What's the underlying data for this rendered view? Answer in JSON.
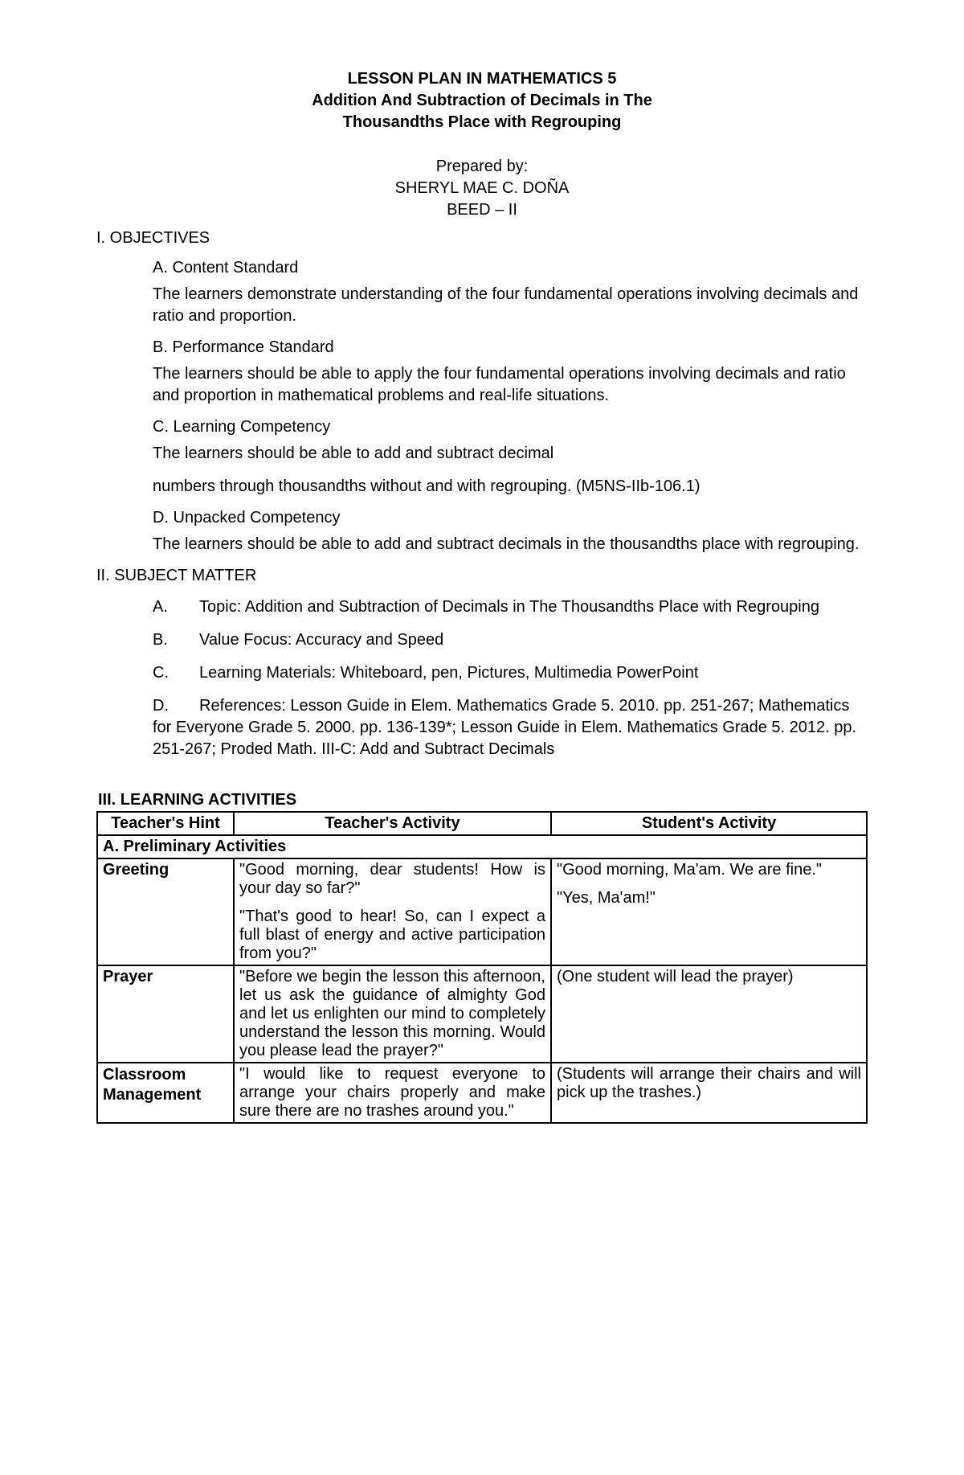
{
  "title": {
    "line1": "LESSON PLAN IN MATHEMATICS 5",
    "line2": "Addition And Subtraction of Decimals in The",
    "line3": "Thousandths Place with Regrouping"
  },
  "prepared": {
    "by_label": "Prepared by:",
    "name": "SHERYL MAE C. DOÑA",
    "course": "BEED – II"
  },
  "objectives": {
    "heading": "I. OBJECTIVES",
    "a_head": "A. Content Standard",
    "a_body": "The learners demonstrate understanding of the four fundamental operations involving decimals and ratio and proportion.",
    "b_head": "B. Performance Standard",
    "b_body": "The learners should be able to apply the four fundamental operations involving decimals and ratio and proportion in mathematical problems and real-life situations.",
    "c_head": "C. Learning Competency",
    "c_body1": "The learners should be able to add and subtract decimal",
    "c_body2": "numbers through thousandths without and with regrouping. (M5NS-IIb-106.1)",
    "d_head": "D. Unpacked Competency",
    "d_body": "The learners should be able to add and subtract decimals in the thousandths place with regrouping."
  },
  "subject": {
    "heading": "II. SUBJECT MATTER",
    "a_letter": "A.",
    "a_text": "Topic: Addition and Subtraction of Decimals in The Thousandths Place with Regrouping",
    "b_letter": "B.",
    "b_text": "Value Focus: Accuracy and Speed",
    "c_letter": "C.",
    "c_text": "Learning Materials: Whiteboard, pen, Pictures, Multimedia PowerPoint",
    "d_letter": "D.",
    "d_text": "References: Lesson Guide in Elem. Mathematics Grade 5. 2010. pp. 251-267; Mathematics for Everyone Grade 5. 2000. pp. 136-139*; Lesson Guide in Elem. Mathematics Grade 5. 2012. pp. 251-267; Proded Math. III-C: Add and Subtract Decimals"
  },
  "activities": {
    "heading": "III. LEARNING ACTIVITIES",
    "col_hint": "Teacher's Hint",
    "col_teacher": "Teacher's Activity",
    "col_student": "Student's Activity",
    "section_a": "A.  Preliminary Activities",
    "rows": {
      "greeting": {
        "hint": "Greeting",
        "teacher1": "\"Good morning, dear students! How is your day so far?\"",
        "teacher2": "\"That's good to hear! So, can I expect a full blast of energy and active participation from you?\"",
        "student1": "\"Good morning, Ma'am. We are fine.\"",
        "student2": "\"Yes, Ma'am!\""
      },
      "prayer": {
        "hint": "Prayer",
        "teacher": "\"Before we begin the lesson this afternoon, let us ask the guidance of almighty God and let us enlighten our mind to completely understand the lesson this morning. Would you please lead the prayer?\"",
        "student": "(One student will lead the prayer)"
      },
      "classroom": {
        "hint1": "Classroom",
        "hint2": "Management",
        "teacher": "\"I would like to request everyone to arrange your chairs properly and make sure there are no trashes around you.\"",
        "student": "(Students will arrange their chairs and will pick up the trashes.)"
      }
    }
  }
}
